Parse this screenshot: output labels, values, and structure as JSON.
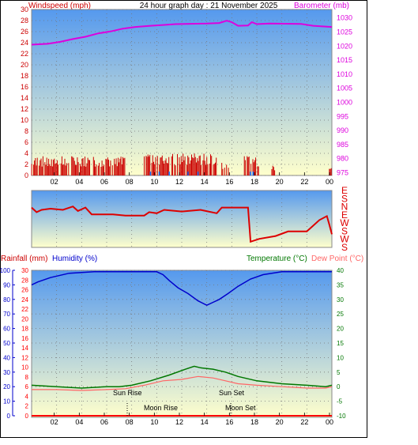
{
  "header": {
    "title": "24 hour graph day : 21 November 2025",
    "left_label": "Windspeed (mph)",
    "right_label": "Barometer (mb)"
  },
  "lower_header": {
    "rainfall_label": "Rainfall (mm)",
    "humidity_label": "Humidity (%)",
    "temperature_label": "Temperature (°C)",
    "dewpoint_label": "Dew Point (°C)"
  },
  "colors": {
    "wind": "#cc0000",
    "gust": "#0066ff",
    "barometer": "#dd00dd",
    "direction": "#dd0000",
    "humidity": "#0000cc",
    "temperature": "#007700",
    "dewpoint": "#ff6666",
    "rain": "#ff0000",
    "sky_top": "#5599ee",
    "sky_bottom": "#ffffcc"
  },
  "chart_data": [
    {
      "type": "bar",
      "name": "wind",
      "x_ticks": [
        "02",
        "04",
        "06",
        "08",
        "10",
        "12",
        "14",
        "16",
        "18",
        "20",
        "22",
        "00"
      ],
      "y_left_ticks": [
        0,
        2,
        4,
        6,
        8,
        10,
        12,
        14,
        16,
        18,
        20,
        22,
        24,
        26,
        28,
        30
      ],
      "y_left_range": [
        0,
        30
      ],
      "y_right_ticks": [
        975,
        980,
        985,
        990,
        995,
        1000,
        1005,
        1010,
        1015,
        1020,
        1025,
        1030
      ],
      "y_right_range": [
        974,
        1033
      ],
      "wind_speed_segments": [
        {
          "from": 0.0,
          "to": 3.0,
          "max": 3.5
        },
        {
          "from": 3.2,
          "to": 7.5,
          "max": 3.5
        },
        {
          "from": 9.0,
          "to": 14.8,
          "max": 4.0
        },
        {
          "from": 15.2,
          "to": 15.8,
          "max": 2.5
        },
        {
          "from": 17.0,
          "to": 18.2,
          "max": 3.5
        },
        {
          "from": 19.2,
          "to": 19.6,
          "max": 2.0
        },
        {
          "from": 23.8,
          "to": 24.0,
          "max": 2.5
        }
      ],
      "barometer_points": [
        [
          0,
          1020.5
        ],
        [
          1.3,
          1020.8
        ],
        [
          2.3,
          1021.5
        ],
        [
          3.3,
          1022.5
        ],
        [
          4.3,
          1023.3
        ],
        [
          5.3,
          1024.5
        ],
        [
          6.3,
          1025.2
        ],
        [
          7.3,
          1026.2
        ],
        [
          8.3,
          1026.8
        ],
        [
          9.5,
          1027.2
        ],
        [
          10.5,
          1027.5
        ],
        [
          11.5,
          1027.8
        ],
        [
          14.0,
          1028.0
        ],
        [
          15.0,
          1028.2
        ],
        [
          15.6,
          1029.0
        ],
        [
          16.0,
          1028.5
        ],
        [
          16.5,
          1027.2
        ],
        [
          17.3,
          1027.3
        ],
        [
          17.6,
          1028.5
        ],
        [
          18.0,
          1027.8
        ],
        [
          19.0,
          1028.0
        ],
        [
          21.5,
          1027.9
        ],
        [
          22.5,
          1027.2
        ],
        [
          24,
          1026.8
        ]
      ]
    },
    {
      "type": "line",
      "name": "wind-direction",
      "axis_labels": [
        "E",
        "S",
        "N",
        "E",
        "W",
        "S",
        "W",
        "S"
      ],
      "direction_points": [
        [
          0,
          0.7
        ],
        [
          0.4,
          0.62
        ],
        [
          0.8,
          0.66
        ],
        [
          1.5,
          0.68
        ],
        [
          2.5,
          0.66
        ],
        [
          3.3,
          0.72
        ],
        [
          3.7,
          0.64
        ],
        [
          4.3,
          0.7
        ],
        [
          4.8,
          0.58
        ],
        [
          6.5,
          0.58
        ],
        [
          7.5,
          0.56
        ],
        [
          9.0,
          0.56
        ],
        [
          9.4,
          0.62
        ],
        [
          10.0,
          0.6
        ],
        [
          10.6,
          0.66
        ],
        [
          12.0,
          0.63
        ],
        [
          13.5,
          0.66
        ],
        [
          14.8,
          0.6
        ],
        [
          15.2,
          0.7
        ],
        [
          17.3,
          0.7
        ],
        [
          17.5,
          0.1
        ],
        [
          18.2,
          0.15
        ],
        [
          19.5,
          0.2
        ],
        [
          20.5,
          0.28
        ],
        [
          22.0,
          0.28
        ],
        [
          23.0,
          0.48
        ],
        [
          23.6,
          0.55
        ],
        [
          23.8,
          0.4
        ],
        [
          24,
          0.23
        ]
      ]
    },
    {
      "type": "line",
      "name": "humidity-temperature",
      "x_ticks": [
        "02",
        "04",
        "06",
        "08",
        "10",
        "12",
        "14",
        "16",
        "18",
        "20",
        "22",
        "00"
      ],
      "humidity_ticks": [
        0,
        10,
        20,
        30,
        40,
        50,
        60,
        70,
        80,
        90,
        100
      ],
      "rain_ticks": [
        0,
        2,
        4,
        6,
        8,
        10,
        12,
        14,
        16,
        18,
        20,
        22,
        24,
        26,
        28,
        30
      ],
      "temp_ticks": [
        -10,
        -5,
        0,
        5,
        10,
        15,
        20,
        25,
        30,
        35,
        40
      ],
      "humidity_points": [
        [
          0,
          90
        ],
        [
          0.5,
          92
        ],
        [
          1.5,
          95
        ],
        [
          3,
          98
        ],
        [
          5,
          99
        ],
        [
          10,
          99
        ],
        [
          10.5,
          97
        ],
        [
          11.0,
          93
        ],
        [
          11.7,
          88
        ],
        [
          12.5,
          84
        ],
        [
          13.3,
          79
        ],
        [
          14.0,
          76
        ],
        [
          14.5,
          78
        ],
        [
          15.0,
          80
        ],
        [
          15.7,
          84
        ],
        [
          16.5,
          89
        ],
        [
          17.5,
          94
        ],
        [
          18.5,
          97
        ],
        [
          20,
          99
        ],
        [
          24,
          99
        ]
      ],
      "temperature_points": [
        [
          0,
          0.5
        ],
        [
          2,
          0.0
        ],
        [
          4,
          -0.5
        ],
        [
          6,
          0.0
        ],
        [
          7,
          0.0
        ],
        [
          8,
          0.5
        ],
        [
          9.5,
          2.0
        ],
        [
          11,
          4.0
        ],
        [
          12.3,
          6.0
        ],
        [
          13.0,
          7.0
        ],
        [
          13.5,
          6.5
        ],
        [
          14.5,
          6.0
        ],
        [
          15.5,
          5.0
        ],
        [
          16.5,
          3.5
        ],
        [
          18.0,
          2.0
        ],
        [
          20,
          1.0
        ],
        [
          22,
          0.5
        ],
        [
          23.5,
          0.0
        ],
        [
          24,
          0.5
        ]
      ],
      "dewpoint_points": [
        [
          0,
          -1.0
        ],
        [
          2,
          -1.0
        ],
        [
          4,
          -1.3
        ],
        [
          6,
          -1.0
        ],
        [
          7.5,
          -0.7
        ],
        [
          9,
          0.5
        ],
        [
          10.5,
          2.0
        ],
        [
          12,
          2.5
        ],
        [
          13.3,
          3.5
        ],
        [
          14.5,
          3.0
        ],
        [
          15.5,
          2.0
        ],
        [
          16.5,
          1.0
        ],
        [
          18,
          0.5
        ],
        [
          20,
          0.0
        ],
        [
          22,
          -0.5
        ],
        [
          23.5,
          -0.5
        ],
        [
          24,
          0.0
        ]
      ],
      "rain_total": 0,
      "annotations": {
        "sun_rise": {
          "label": "Sun Rise",
          "hour": 7.4
        },
        "sun_set": {
          "label": "Sun Set",
          "hour": 16.0
        },
        "moon_rise": {
          "label": "Moon Rise",
          "hour": 7.4
        },
        "moon_set": {
          "label": "Moon Set",
          "hour": 16.3
        }
      }
    }
  ]
}
